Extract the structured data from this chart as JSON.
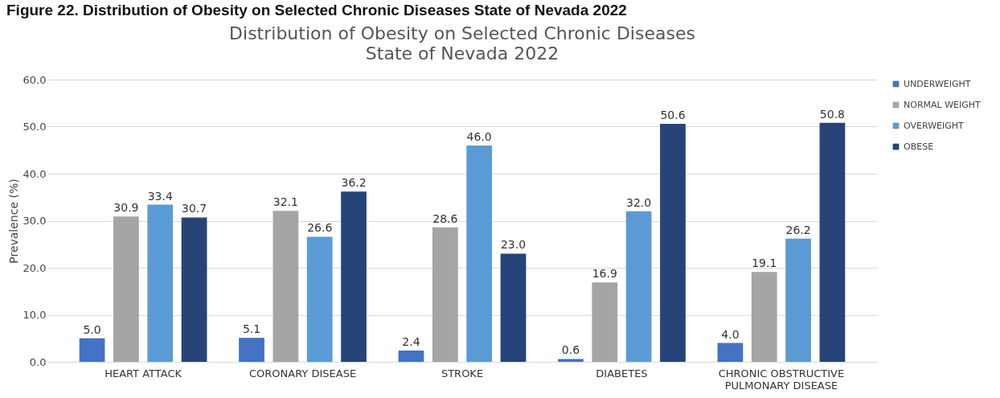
{
  "chart_data": {
    "type": "bar",
    "title": "Distribution of  Obesity on Selected Chronic Diseases",
    "subtitle": "State of Nevada 2022",
    "ylabel": "Prevalence (%)",
    "annotations": [
      "Figure 22. Distribution of Obesity on Selected Chronic Diseases State of Nevada 2022"
    ],
    "categories": [
      "HEART ATTACK",
      "CORONARY DISEASE",
      "STROKE",
      "DIABETES",
      "CHRONIC OBSTRUCTIVE PULMONARY DISEASE"
    ],
    "series": [
      {
        "name": "UNDERWEIGHT",
        "color": "#4472c4",
        "values": [
          5.0,
          5.1,
          2.4,
          0.6,
          4.0
        ],
        "value_labels": [
          "5.0",
          "5.1",
          "2.4",
          "0.6",
          "4.0"
        ]
      },
      {
        "name": "NORMAL WEIGHT",
        "color": "#a5a5a5",
        "values": [
          30.9,
          32.1,
          28.6,
          16.9,
          19.1
        ],
        "value_labels": [
          "30.9",
          "32.1",
          "28.6",
          "16.9",
          "19.1"
        ]
      },
      {
        "name": "OVERWEIGHT",
        "color": "#5b9bd5",
        "values": [
          33.4,
          26.6,
          46.0,
          32.0,
          26.2
        ],
        "value_labels": [
          "33.4",
          "26.6",
          "46.0",
          "32.0",
          "26.2"
        ]
      },
      {
        "name": "OBESE",
        "color": "#264478",
        "values": [
          30.7,
          36.2,
          23.0,
          50.6,
          50.8
        ],
        "value_labels": [
          "30.7",
          "36.2",
          "23.0",
          "50.6",
          "50.8"
        ]
      }
    ],
    "ylim": [
      0,
      60
    ],
    "yticks": [
      {
        "value": 0,
        "label": "0.0"
      },
      {
        "value": 10,
        "label": "10.0"
      },
      {
        "value": 20,
        "label": "20.0"
      },
      {
        "value": 30,
        "label": "30.0"
      },
      {
        "value": 40,
        "label": "40.0"
      },
      {
        "value": 50,
        "label": "50.0"
      },
      {
        "value": 60,
        "label": "60.0"
      }
    ],
    "grid": "y",
    "legend": "right"
  }
}
